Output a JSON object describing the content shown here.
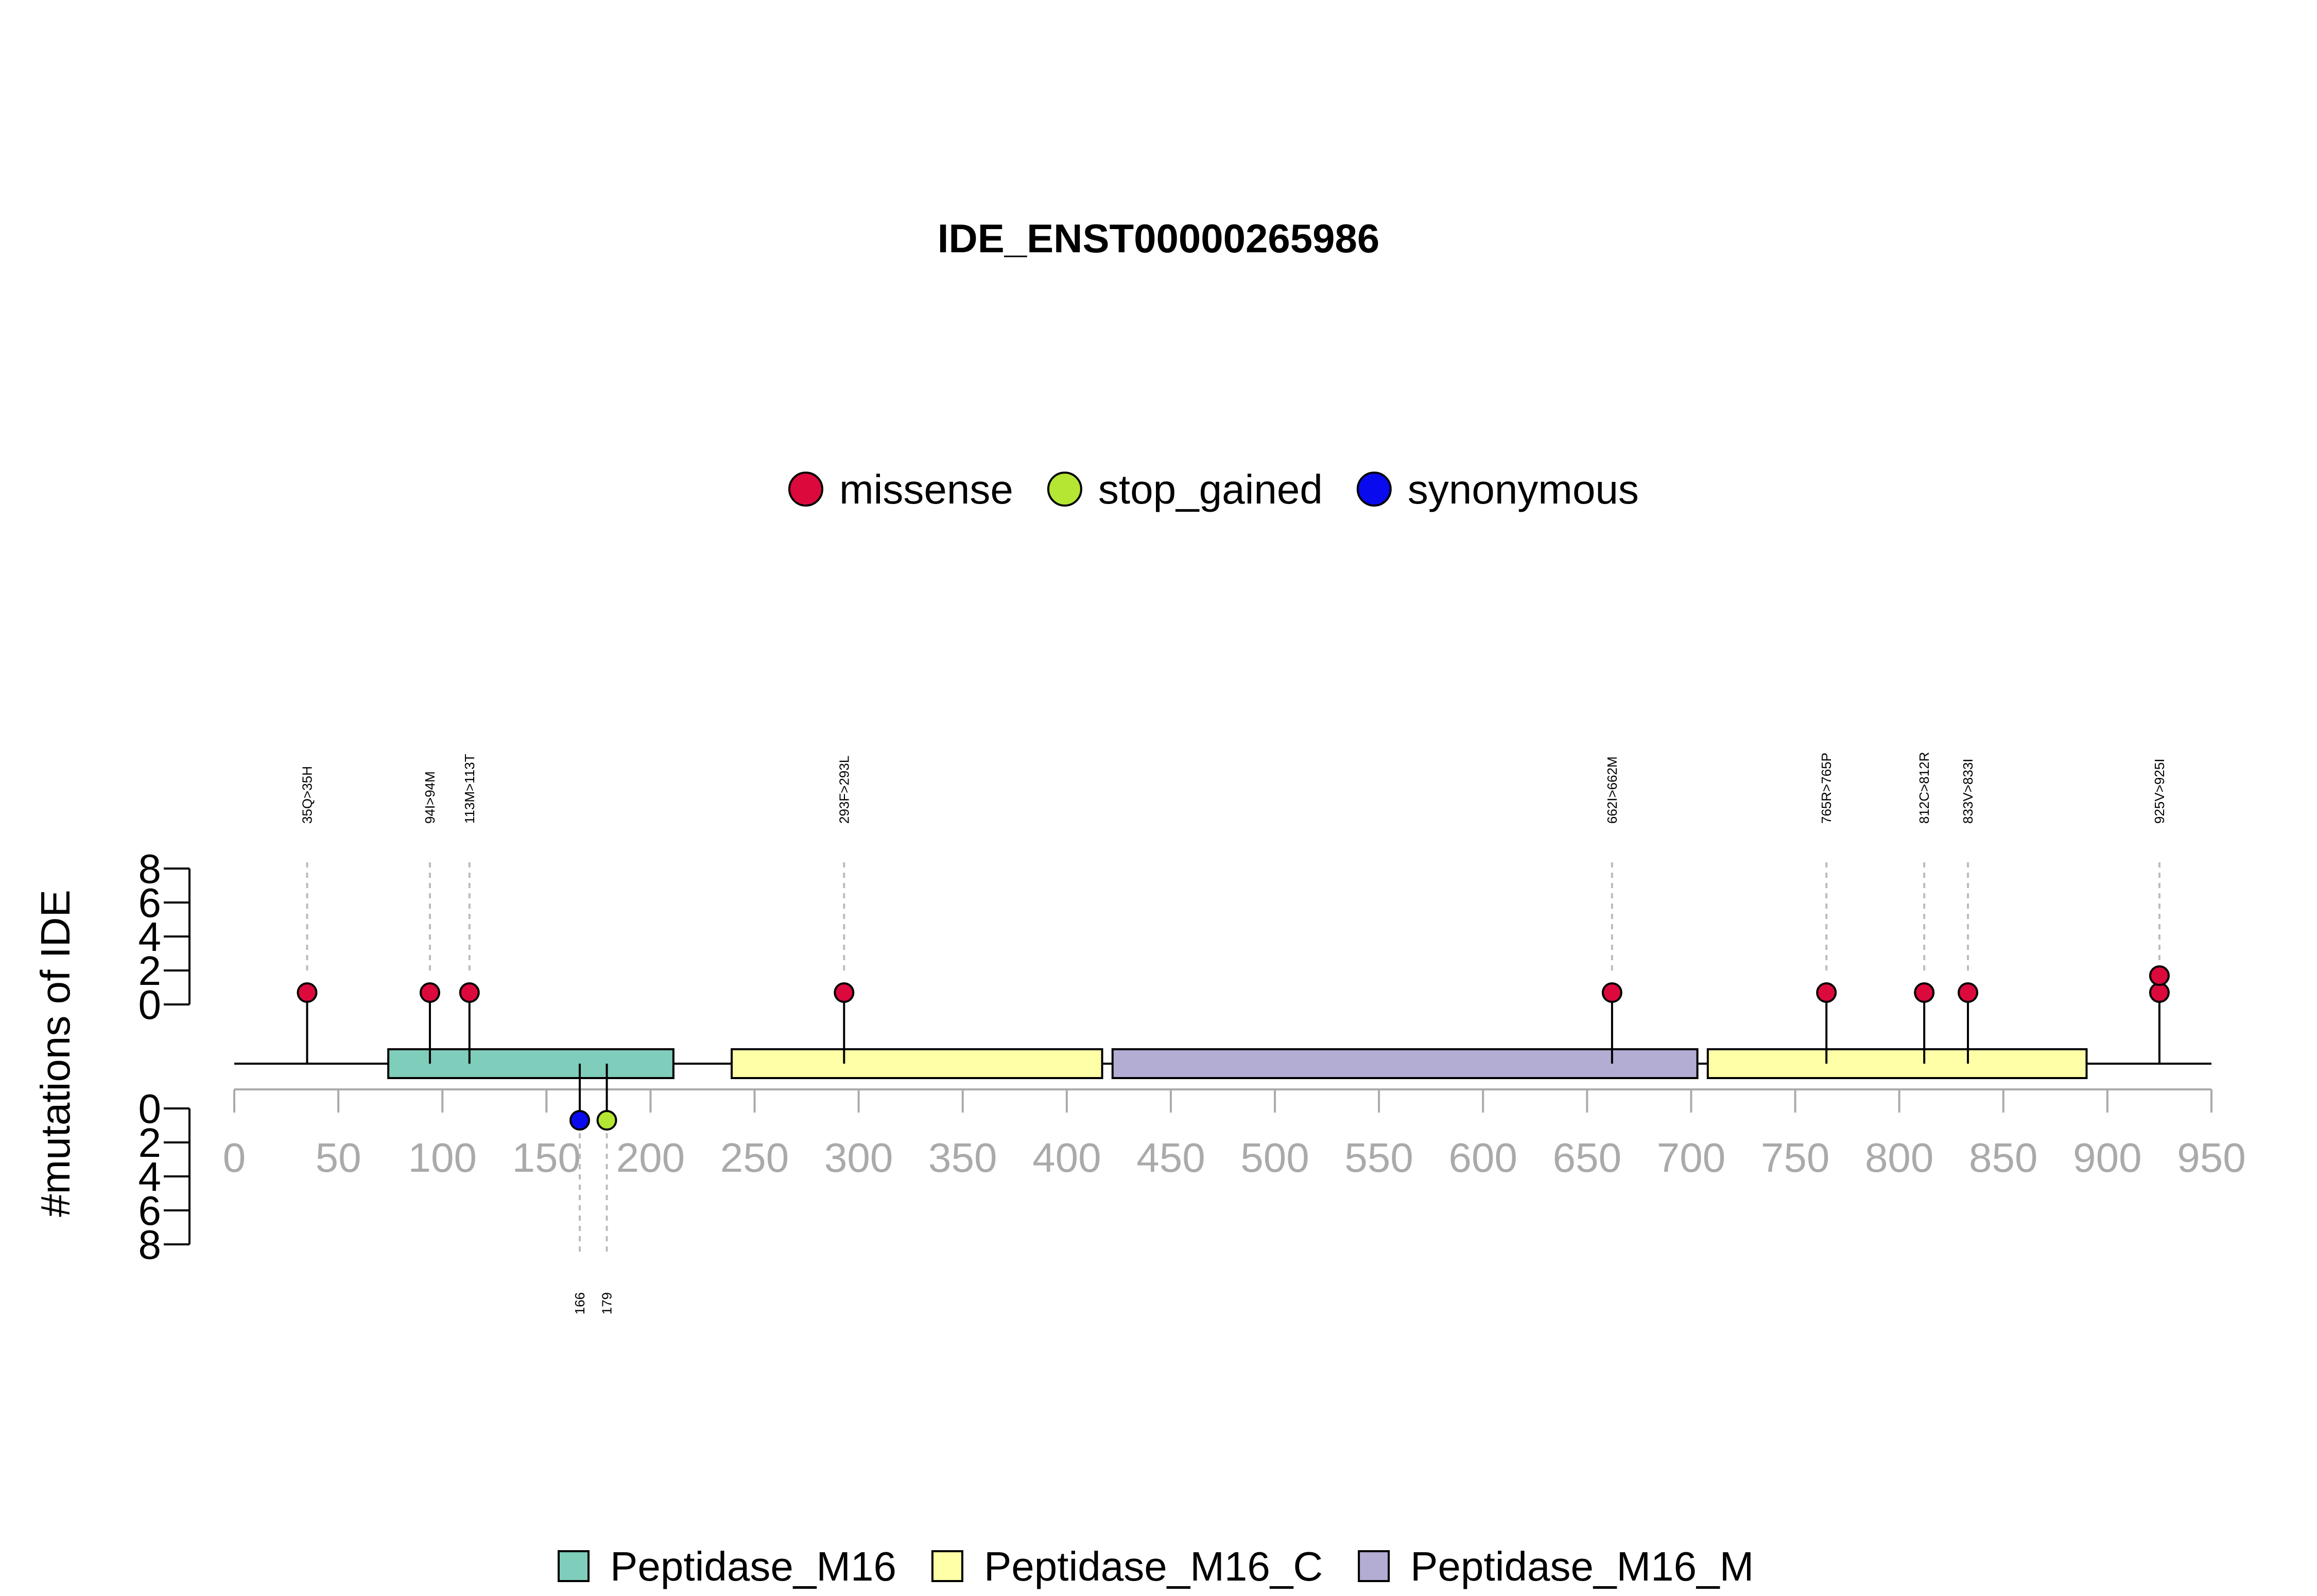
{
  "chart_data": {
    "type": "lollipop",
    "title": "IDE_ENST00000265986",
    "ylabel": "#mutations of IDE",
    "xlim": [
      0,
      950
    ],
    "x_ticks": [
      0,
      50,
      100,
      150,
      200,
      250,
      300,
      350,
      400,
      450,
      500,
      550,
      600,
      650,
      700,
      750,
      800,
      850,
      900,
      950
    ],
    "y_ticks_top": [
      0,
      2,
      4,
      6,
      8
    ],
    "y_ticks_bottom": [
      0,
      2,
      4,
      6,
      8
    ],
    "mutation_types": [
      {
        "name": "missense",
        "color": "#dc0a3c"
      },
      {
        "name": "stop_gained",
        "color": "#b4e633"
      },
      {
        "name": "synonymous",
        "color": "#0a0aee"
      }
    ],
    "domains": [
      {
        "name": "Peptidase_M16",
        "start": 74,
        "end": 211,
        "color": "#7fcdbb"
      },
      {
        "name": "Peptidase_M16_C",
        "start": 239,
        "end": 417,
        "color": "#ffffa8"
      },
      {
        "name": "Peptidase_M16_M",
        "start": 422,
        "end": 703,
        "color": "#b3acd3"
      },
      {
        "name": "Peptidase_M16_C",
        "start": 708,
        "end": 890,
        "color": "#ffffa8"
      }
    ],
    "domain_legend": [
      {
        "name": "Peptidase_M16",
        "color": "#7fcdbb"
      },
      {
        "name": "Peptidase_M16_C",
        "color": "#ffffa8"
      },
      {
        "name": "Peptidase_M16_M",
        "color": "#b3acd3"
      }
    ],
    "mutations_top": [
      {
        "position": 35,
        "label": "35Q>35H",
        "type": "missense",
        "count": 1
      },
      {
        "position": 94,
        "label": "94I>94M",
        "type": "missense",
        "count": 1
      },
      {
        "position": 113,
        "label": "113M>113T",
        "type": "missense",
        "count": 1
      },
      {
        "position": 293,
        "label": "293F>293L",
        "type": "missense",
        "count": 1
      },
      {
        "position": 662,
        "label": "662I>662M",
        "type": "missense",
        "count": 1
      },
      {
        "position": 765,
        "label": "765R>765P",
        "type": "missense",
        "count": 1
      },
      {
        "position": 812,
        "label": "812C>812R",
        "type": "missense",
        "count": 1
      },
      {
        "position": 833,
        "label": "833V>833I",
        "type": "missense",
        "count": 1
      },
      {
        "position": 925,
        "label": "925V>925I",
        "type": "missense",
        "count": 2
      }
    ],
    "mutations_bottom": [
      {
        "position": 166,
        "label": "166",
        "type": "synonymous",
        "count": 1
      },
      {
        "position": 179,
        "label": "179",
        "type": "stop_gained",
        "count": 1
      }
    ]
  }
}
